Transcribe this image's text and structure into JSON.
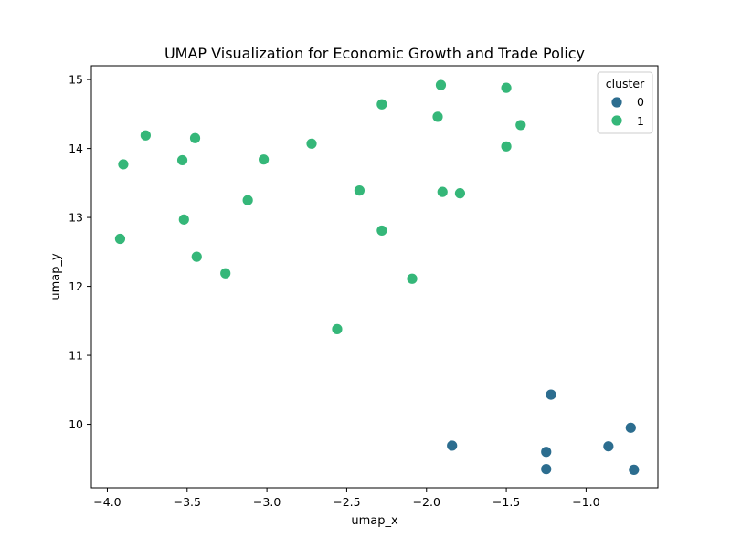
{
  "chart_data": {
    "type": "scatter",
    "title": "UMAP Visualization for Economic Growth and Trade Policy",
    "xlabel": "umap_x",
    "ylabel": "umap_y",
    "xlim": [
      -4.1,
      -0.55
    ],
    "ylim": [
      9.08,
      15.2
    ],
    "xticks": [
      -4.0,
      -3.5,
      -3.0,
      -2.5,
      -2.0,
      -1.5,
      -1.0
    ],
    "xtick_labels": [
      "−4.0",
      "−3.5",
      "−3.0",
      "−2.5",
      "−2.0",
      "−1.5",
      "−1.0"
    ],
    "yticks": [
      10,
      11,
      12,
      13,
      14,
      15
    ],
    "ytick_labels": [
      "10",
      "11",
      "12",
      "13",
      "14",
      "15"
    ],
    "grid": false,
    "legend": {
      "title": "cluster",
      "placement": "top-right",
      "entries": [
        {
          "label": "0",
          "color": "#2c6d8f"
        },
        {
          "label": "1",
          "color": "#35b779"
        }
      ]
    },
    "series": [
      {
        "name": "0",
        "color": "#2c6d8f",
        "points": [
          [
            -1.22,
            10.43
          ],
          [
            -0.72,
            9.95
          ],
          [
            -1.84,
            9.69
          ],
          [
            -0.86,
            9.68
          ],
          [
            -1.25,
            9.6
          ],
          [
            -1.25,
            9.35
          ],
          [
            -0.7,
            9.34
          ]
        ]
      },
      {
        "name": "1",
        "color": "#35b779",
        "points": [
          [
            -1.91,
            14.92
          ],
          [
            -1.5,
            14.88
          ],
          [
            -2.28,
            14.64
          ],
          [
            -1.93,
            14.46
          ],
          [
            -1.41,
            14.34
          ],
          [
            -3.76,
            14.19
          ],
          [
            -3.45,
            14.15
          ],
          [
            -2.72,
            14.07
          ],
          [
            -1.5,
            14.03
          ],
          [
            -3.02,
            13.84
          ],
          [
            -3.53,
            13.83
          ],
          [
            -3.9,
            13.77
          ],
          [
            -2.42,
            13.39
          ],
          [
            -1.9,
            13.37
          ],
          [
            -1.79,
            13.35
          ],
          [
            -3.12,
            13.25
          ],
          [
            -3.52,
            12.97
          ],
          [
            -2.28,
            12.81
          ],
          [
            -3.92,
            12.69
          ],
          [
            -3.44,
            12.43
          ],
          [
            -3.26,
            12.19
          ],
          [
            -2.09,
            12.11
          ],
          [
            -2.56,
            11.38
          ]
        ]
      }
    ]
  }
}
